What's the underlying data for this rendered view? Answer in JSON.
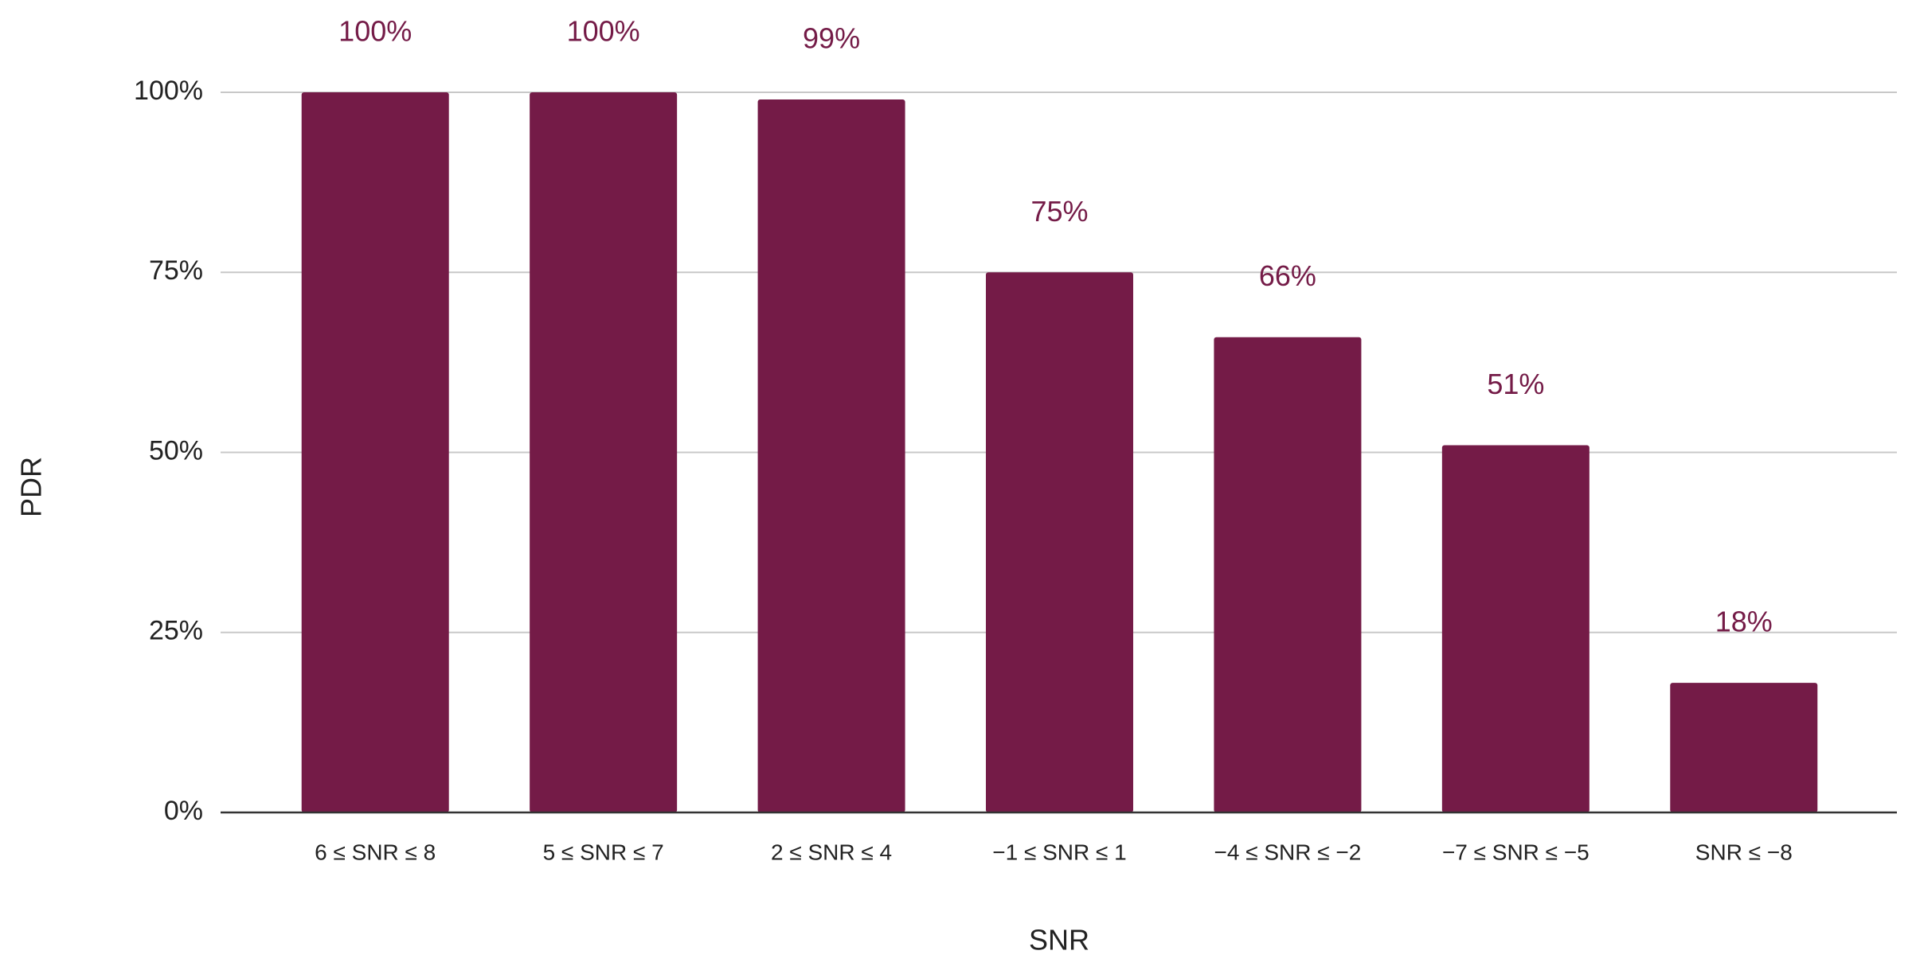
{
  "chart_data": {
    "type": "bar",
    "categories": [
      "6 ≤ SNR ≤ 8",
      "5 ≤ SNR ≤ 7",
      "2 ≤ SNR ≤ 4",
      "−1 ≤ SNR ≤ 1",
      "−4 ≤ SNR ≤ −2",
      "−7 ≤ SNR ≤ −5",
      "SNR ≤ −8"
    ],
    "values": [
      100,
      100,
      99,
      75,
      66,
      51,
      18
    ],
    "value_labels": [
      "100%",
      "100%",
      "99%",
      "75%",
      "66%",
      "51%",
      "18%"
    ],
    "color": "#741b47",
    "x_label": "SNR",
    "y_label": "PDR",
    "ylim": [
      0,
      100
    ],
    "yticks": [
      {
        "value": 0,
        "label": "0%"
      },
      {
        "value": 25,
        "label": "25%"
      },
      {
        "value": 50,
        "label": "50%"
      },
      {
        "value": 75,
        "label": "75%"
      },
      {
        "value": 100,
        "label": "100%"
      }
    ],
    "grid": true
  }
}
